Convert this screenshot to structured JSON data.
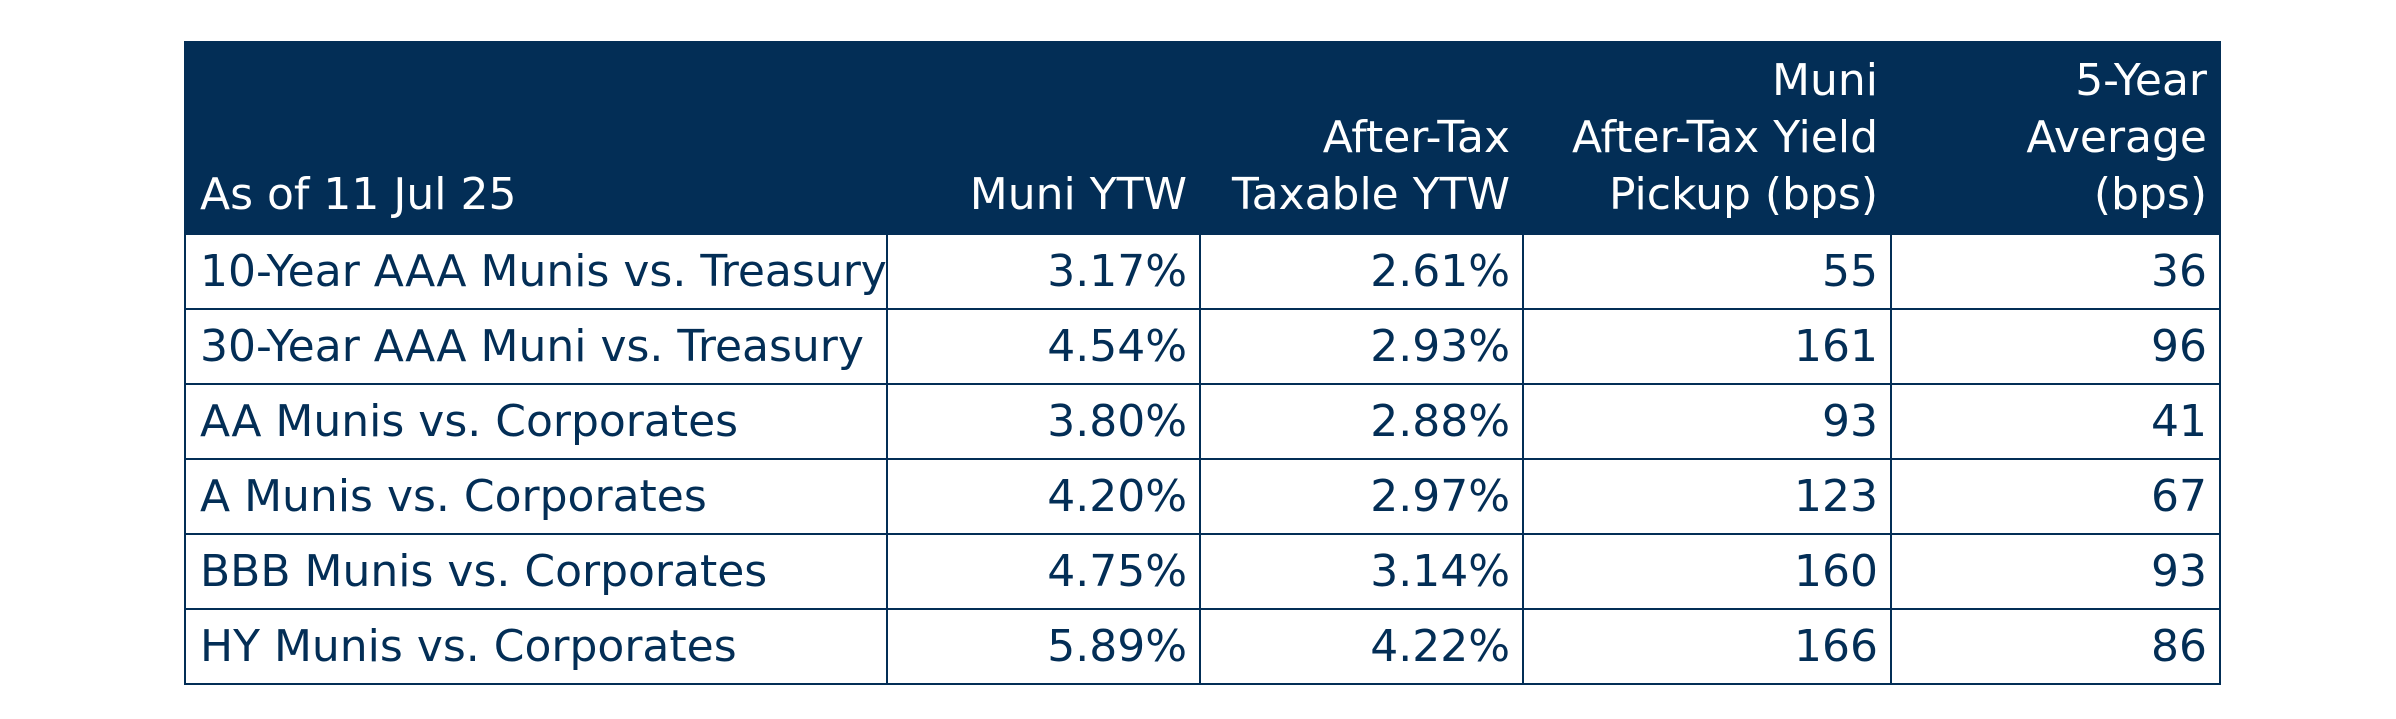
{
  "table": {
    "headers": {
      "as_of": "As of 11 Jul 25",
      "muni_ytw": "Muni YTW",
      "after_tax": [
        "After-Tax",
        "Taxable YTW"
      ],
      "pickup": [
        "Muni",
        "After-Tax Yield",
        "Pickup (bps)"
      ],
      "five_year": [
        "5-Year",
        "Average (bps)"
      ]
    },
    "rows": [
      {
        "label": "10-Year AAA Munis vs. Treasury",
        "muni_ytw": "3.17%",
        "after_tax_ytw": "2.61%",
        "pickup": "55",
        "avg5": "36"
      },
      {
        "label": "30-Year AAA Muni vs. Treasury",
        "muni_ytw": "4.54%",
        "after_tax_ytw": "2.93%",
        "pickup": "161",
        "avg5": "96"
      },
      {
        "label": "AA Munis vs. Corporates",
        "muni_ytw": "3.80%",
        "after_tax_ytw": "2.88%",
        "pickup": "93",
        "avg5": "41"
      },
      {
        "label": "A Munis vs. Corporates",
        "muni_ytw": "4.20%",
        "after_tax_ytw": "2.97%",
        "pickup": "123",
        "avg5": "67"
      },
      {
        "label": "BBB Munis vs. Corporates",
        "muni_ytw": "4.75%",
        "after_tax_ytw": "3.14%",
        "pickup": "160",
        "avg5": "93"
      },
      {
        "label": "HY Munis vs. Corporates",
        "muni_ytw": "5.89%",
        "after_tax_ytw": "4.22%",
        "pickup": "166",
        "avg5": "86"
      }
    ]
  },
  "colors": {
    "header_bg": "#032e56",
    "text": "#032e56",
    "header_text": "#ffffff"
  }
}
